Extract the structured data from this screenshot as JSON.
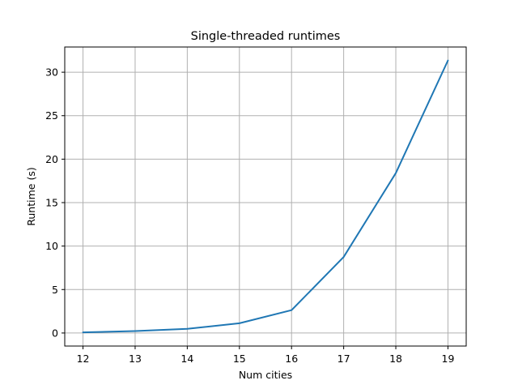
{
  "chart_data": {
    "type": "line",
    "title": "Single-threaded runtimes",
    "xlabel": "Num cities",
    "ylabel": "Runtime (s)",
    "x": [
      12,
      13,
      14,
      15,
      16,
      17,
      18,
      19
    ],
    "series": [
      {
        "values": [
          0.07,
          0.22,
          0.48,
          1.12,
          2.63,
          8.75,
          18.4,
          31.35
        ],
        "color": "#1f77b4"
      }
    ],
    "xlim": [
      11.65,
      19.35
    ],
    "ylim": [
      -1.5,
      32.9
    ],
    "xticks": [
      12,
      13,
      14,
      15,
      16,
      17,
      18,
      19
    ],
    "yticks": [
      0,
      5,
      10,
      15,
      20,
      25,
      30
    ],
    "grid": true
  }
}
